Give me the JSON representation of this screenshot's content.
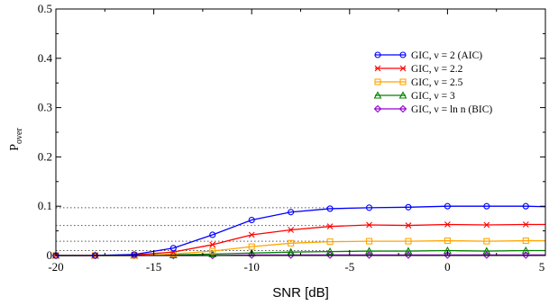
{
  "chart_data": {
    "type": "line",
    "title": "",
    "xlabel": "SNR [dB]",
    "ylabel": "P",
    "ylabel_subscript": "over",
    "xlim": [
      -20,
      5
    ],
    "ylim": [
      0,
      0.5
    ],
    "x_ticks": [
      -20,
      -15,
      -10,
      -5,
      0,
      5
    ],
    "x_tick_labels": [
      "-20",
      "-15",
      "-10",
      "-5",
      "0",
      "5"
    ],
    "y_ticks": [
      0,
      0.1,
      0.2,
      0.3,
      0.4,
      0.5
    ],
    "y_tick_labels": [
      "0",
      "0.1",
      "0.2",
      "0.3",
      "0.4",
      "0.5"
    ],
    "legend_position": "top-right",
    "grid": false,
    "x": [
      -20,
      -18,
      -16,
      -14,
      -12,
      -10,
      -8,
      -6,
      -4,
      -2,
      0,
      2,
      4,
      5
    ],
    "series": [
      {
        "name": "GIC, ν = 2 (AIC)",
        "color": "#0000ff",
        "marker": "circle",
        "values": [
          0,
          0,
          0.002,
          0.015,
          0.042,
          0.072,
          0.088,
          0.095,
          0.097,
          0.098,
          0.1,
          0.1,
          0.1,
          0.099
        ]
      },
      {
        "name": "GIC, ν = 2.2",
        "color": "#ff0000",
        "marker": "x",
        "values": [
          0,
          0,
          0.001,
          0.007,
          0.022,
          0.042,
          0.052,
          0.059,
          0.062,
          0.061,
          0.063,
          0.062,
          0.063,
          0.063
        ]
      },
      {
        "name": "GIC, ν = 2.5",
        "color": "#ffa500",
        "marker": "square",
        "values": [
          0,
          0,
          0,
          0.003,
          0.009,
          0.018,
          0.025,
          0.028,
          0.029,
          0.029,
          0.03,
          0.029,
          0.03,
          0.03
        ]
      },
      {
        "name": "GIC, ν = 3",
        "color": "#008000",
        "marker": "triangle",
        "values": [
          0,
          0,
          0,
          0.001,
          0.003,
          0.005,
          0.007,
          0.008,
          0.009,
          0.009,
          0.01,
          0.009,
          0.01,
          0.01
        ]
      },
      {
        "name": "GIC, ν = ln n (BIC)",
        "color": "#9400d3",
        "marker": "diamond",
        "values": [
          0,
          0,
          0,
          0,
          0,
          0.001,
          0.001,
          0.001,
          0.001,
          0.001,
          0.001,
          0.001,
          0.001,
          0.001
        ]
      }
    ],
    "reference_lines": [
      {
        "y": 0.097,
        "style": "dotted",
        "color": "#555555",
        "x_end": -6
      },
      {
        "y": 0.061,
        "style": "dotted",
        "color": "#555555",
        "x_end": -6
      },
      {
        "y": 0.029,
        "style": "dotted",
        "color": "#555555",
        "x_end": -6
      },
      {
        "y": 0.01,
        "style": "dotted",
        "color": "#555555",
        "x_end": -6
      }
    ]
  }
}
